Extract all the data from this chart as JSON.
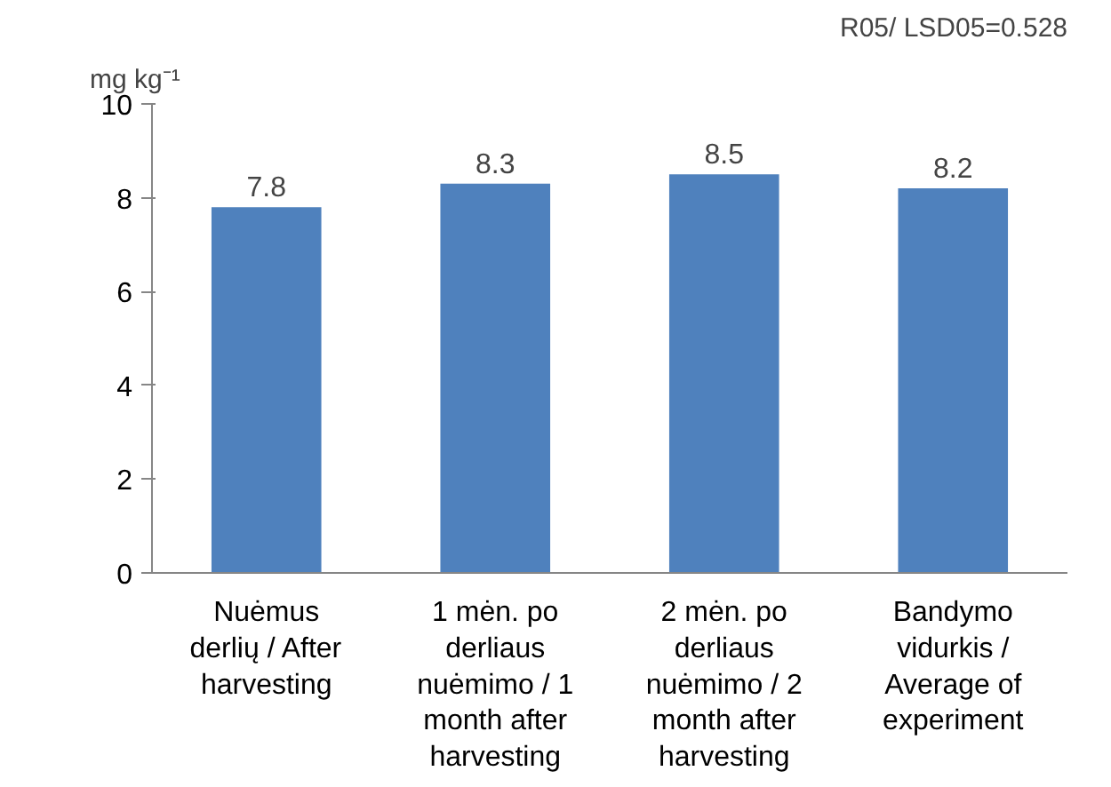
{
  "chart_data": {
    "type": "bar",
    "categories": [
      "Nuėmus\nderlių / After\nharvesting",
      "1 mėn. po\nderliaus\nnuėmimo / 1\nmonth after\nharvesting",
      "2 mėn. po\nderliaus\nnuėmimo / 2\nmonth after\nharvesting",
      "Bandymo\nvidurkis /\nAverage of\nexperiment"
    ],
    "values": [
      7.8,
      8.3,
      8.5,
      8.2
    ],
    "color": "#4f81bd",
    "ylabel": "mg kg⁻¹",
    "annotations": [
      "R05/ LSD05=0.528"
    ],
    "ylim": [
      0,
      10
    ],
    "yticks": [
      0,
      2,
      4,
      6,
      8,
      10
    ],
    "grid": false,
    "data_labels": true
  }
}
